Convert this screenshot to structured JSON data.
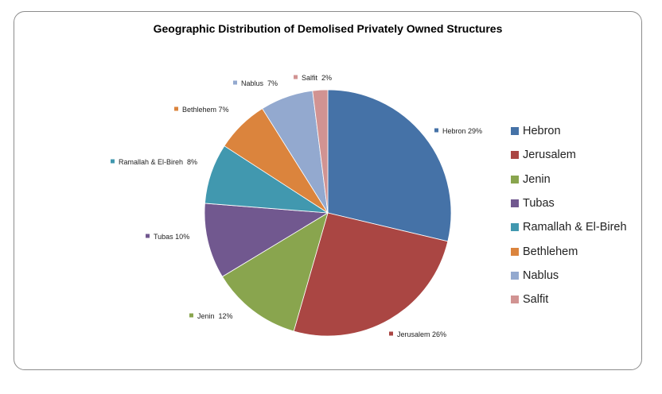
{
  "chart_data": {
    "type": "pie",
    "title": "Geographic Distribution of Demolised Privately Owned Structures",
    "slices": [
      {
        "name": "Hebron",
        "label": "Hebron 29%",
        "value": 29,
        "color": "#4572A7"
      },
      {
        "name": "Jerusalem",
        "label": "Jerusalem 26%",
        "value": 26,
        "color": "#AA4643"
      },
      {
        "name": "Jenin",
        "label": "Jenin  12%",
        "value": 12,
        "color": "#89A54E"
      },
      {
        "name": "Tubas",
        "label": "Tubas 10%",
        "value": 10,
        "color": "#71588F"
      },
      {
        "name": "Ramallah & El-Bireh",
        "label": "Ramallah & El-Bireh  8%",
        "value": 8,
        "color": "#4198AF"
      },
      {
        "name": "Bethlehem",
        "label": "Bethlehem 7%",
        "value": 7,
        "color": "#DB843D"
      },
      {
        "name": "Nablus",
        "label": "Nablus  7%",
        "value": 7,
        "color": "#93A9CF"
      },
      {
        "name": "Salfit",
        "label": "Salfit  2%",
        "value": 2,
        "color": "#D19392"
      }
    ],
    "legend_position": "right"
  }
}
